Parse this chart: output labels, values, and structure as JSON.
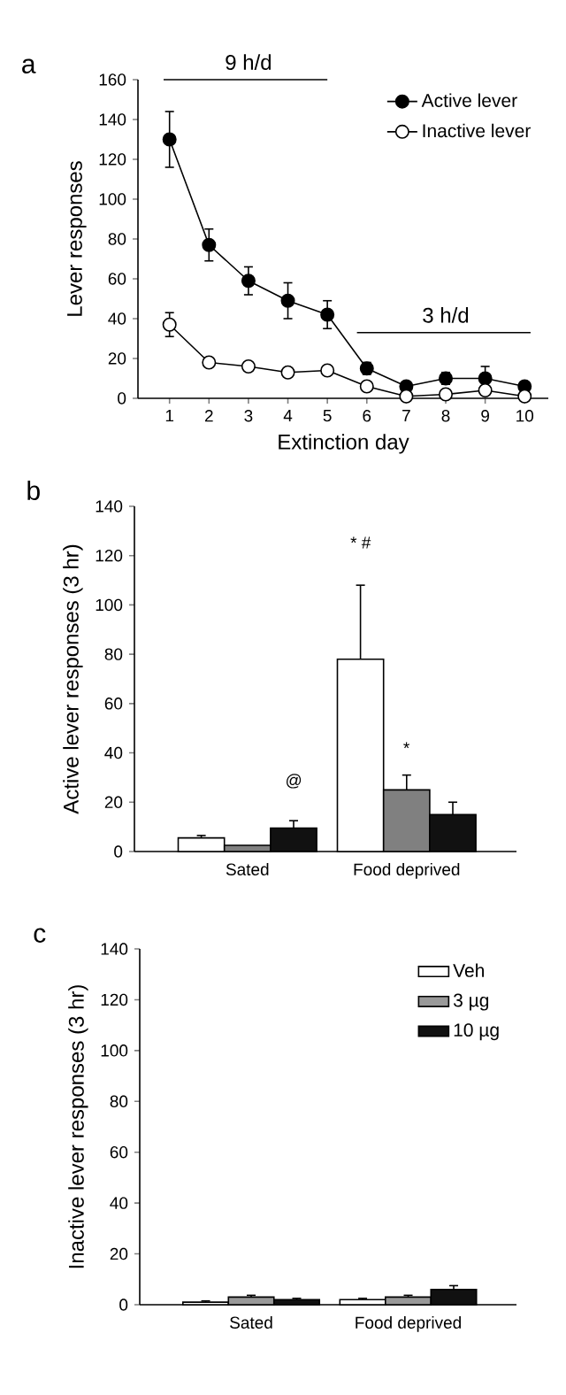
{
  "chart_data": [
    {
      "type": "line",
      "title": "a",
      "xlabel": "Extinction day",
      "ylabel": "Lever responses",
      "x": [
        1,
        2,
        3,
        4,
        5,
        6,
        7,
        8,
        9,
        10
      ],
      "xlim": [
        0.2,
        10.6
      ],
      "xticks": [
        1,
        2,
        3,
        4,
        5,
        6,
        7,
        8,
        9,
        10
      ],
      "ylim": [
        0,
        160
      ],
      "yticks": [
        0,
        20,
        40,
        60,
        80,
        100,
        120,
        140,
        160
      ],
      "marker": "circle",
      "legend": "top right",
      "series": [
        {
          "name": "Active lever",
          "color": "#000000",
          "values": [
            130,
            77,
            59,
            49,
            42,
            15,
            6,
            10,
            10,
            6
          ],
          "errors": [
            14,
            8,
            7,
            9,
            7,
            3,
            2,
            3,
            6,
            2
          ]
        },
        {
          "name": "Inactive lever",
          "color": "#ffffff",
          "values": [
            37,
            18,
            16,
            13,
            14,
            6,
            1,
            2,
            4,
            1
          ],
          "errors": [
            6,
            2,
            null,
            null,
            null,
            null,
            null,
            null,
            2,
            null
          ]
        },
        {
          "color": "#000000",
          "marker": "none",
          "x": [
            0.85,
            5
          ],
          "values": [
            160,
            160
          ]
        },
        {
          "color": "#000000",
          "marker": "none",
          "x": [
            5.75,
            10.15
          ],
          "values": [
            33,
            33
          ]
        }
      ],
      "annotations": [
        {
          "text": "9 h/d",
          "x": 3,
          "y": 160
        },
        {
          "text": "3 h/d",
          "x": 8,
          "y": 33
        }
      ]
    },
    {
      "type": "bar",
      "title": "b",
      "ylabel": "Active lever responses (3 hr)",
      "categories": [
        "Sated",
        "Food deprived"
      ],
      "ylim": [
        0,
        140
      ],
      "yticks": [
        0,
        20,
        40,
        60,
        80,
        100,
        120,
        140
      ],
      "series": [
        {
          "color": "#ffffff",
          "values": [
            5.5,
            78
          ],
          "errors": [
            1,
            30
          ]
        },
        {
          "color": "#808080",
          "values": [
            2.5,
            25
          ],
          "errors": [
            null,
            6
          ]
        },
        {
          "color": "#111111",
          "values": [
            9.5,
            15
          ],
          "errors": [
            3,
            5
          ]
        }
      ],
      "annotations": [
        "* #",
        "*",
        "@"
      ]
    },
    {
      "type": "bar",
      "title": "c",
      "ylabel": "Inactive lever responses (3 hr)",
      "categories": [
        "Sated",
        "Food deprived"
      ],
      "ylim": [
        0,
        140
      ],
      "yticks": [
        0,
        20,
        40,
        60,
        80,
        100,
        120,
        140
      ],
      "legend": "top right",
      "series": [
        {
          "name": "Veh",
          "color": "#ffffff",
          "values": [
            1,
            2
          ],
          "errors": [
            0.5,
            0.5
          ]
        },
        {
          "name": "3 µg",
          "color": "#999999",
          "values": [
            3,
            3
          ],
          "errors": [
            0.7,
            0.7
          ]
        },
        {
          "name": "10 µg",
          "color": "#111111",
          "values": [
            2,
            6
          ],
          "errors": [
            0.5,
            1.5
          ]
        }
      ]
    }
  ]
}
